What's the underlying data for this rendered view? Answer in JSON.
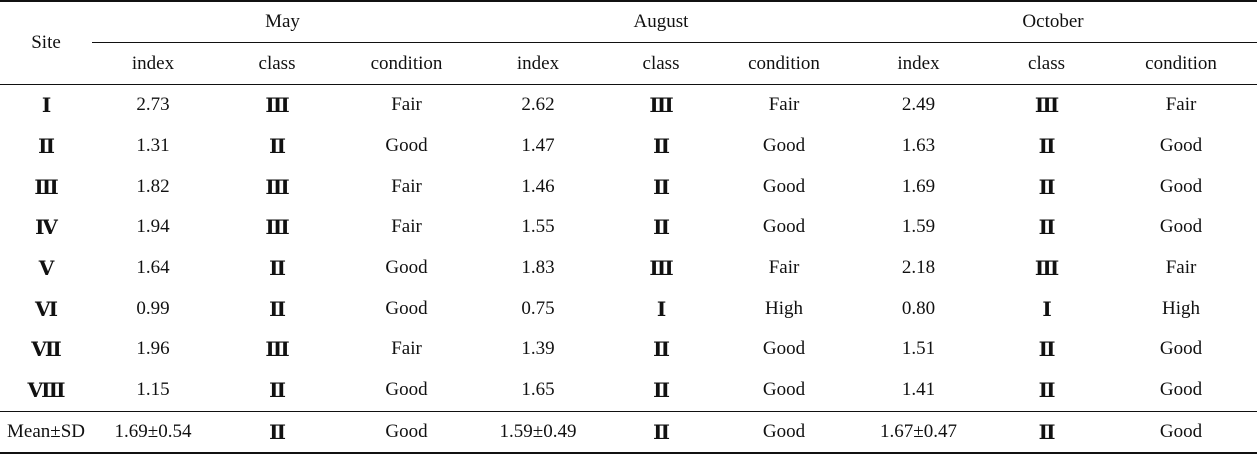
{
  "table": {
    "site_header": "Site",
    "months": [
      "May",
      "August",
      "October"
    ],
    "sub_headers": [
      "index",
      "class",
      "condition"
    ],
    "rows": [
      {
        "site": "Ⅰ",
        "may": {
          "index": "2.73",
          "class": "Ⅲ",
          "condition": "Fair"
        },
        "august": {
          "index": "2.62",
          "class": "Ⅲ",
          "condition": "Fair"
        },
        "october": {
          "index": "2.49",
          "class": "Ⅲ",
          "condition": "Fair"
        }
      },
      {
        "site": "Ⅱ",
        "may": {
          "index": "1.31",
          "class": "Ⅱ",
          "condition": "Good"
        },
        "august": {
          "index": "1.47",
          "class": "Ⅱ",
          "condition": "Good"
        },
        "october": {
          "index": "1.63",
          "class": "Ⅱ",
          "condition": "Good"
        }
      },
      {
        "site": "Ⅲ",
        "may": {
          "index": "1.82",
          "class": "Ⅲ",
          "condition": "Fair"
        },
        "august": {
          "index": "1.46",
          "class": "Ⅱ",
          "condition": "Good"
        },
        "october": {
          "index": "1.69",
          "class": "Ⅱ",
          "condition": "Good"
        }
      },
      {
        "site": "Ⅳ",
        "may": {
          "index": "1.94",
          "class": "Ⅲ",
          "condition": "Fair"
        },
        "august": {
          "index": "1.55",
          "class": "Ⅱ",
          "condition": "Good"
        },
        "october": {
          "index": "1.59",
          "class": "Ⅱ",
          "condition": "Good"
        }
      },
      {
        "site": "Ⅴ",
        "may": {
          "index": "1.64",
          "class": "Ⅱ",
          "condition": "Good"
        },
        "august": {
          "index": "1.83",
          "class": "Ⅲ",
          "condition": "Fair"
        },
        "october": {
          "index": "2.18",
          "class": "Ⅲ",
          "condition": "Fair"
        }
      },
      {
        "site": "Ⅵ",
        "may": {
          "index": "0.99",
          "class": "Ⅱ",
          "condition": "Good"
        },
        "august": {
          "index": "0.75",
          "class": "I",
          "condition": "High"
        },
        "october": {
          "index": "0.80",
          "class": "I",
          "condition": "High"
        }
      },
      {
        "site": "Ⅶ",
        "may": {
          "index": "1.96",
          "class": "Ⅲ",
          "condition": "Fair"
        },
        "august": {
          "index": "1.39",
          "class": "Ⅱ",
          "condition": "Good"
        },
        "october": {
          "index": "1.51",
          "class": "Ⅱ",
          "condition": "Good"
        }
      },
      {
        "site": "Ⅷ",
        "may": {
          "index": "1.15",
          "class": "Ⅱ",
          "condition": "Good"
        },
        "august": {
          "index": "1.65",
          "class": "Ⅱ",
          "condition": "Good"
        },
        "october": {
          "index": "1.41",
          "class": "Ⅱ",
          "condition": "Good"
        }
      }
    ],
    "summary": {
      "site": "Mean±SD",
      "may": {
        "index": "1.69±0.54",
        "class": "Ⅱ",
        "condition": "Good"
      },
      "august": {
        "index": "1.59±0.49",
        "class": "Ⅱ",
        "condition": "Good"
      },
      "october": {
        "index": "1.67±0.47",
        "class": "Ⅱ",
        "condition": "Good"
      }
    }
  }
}
